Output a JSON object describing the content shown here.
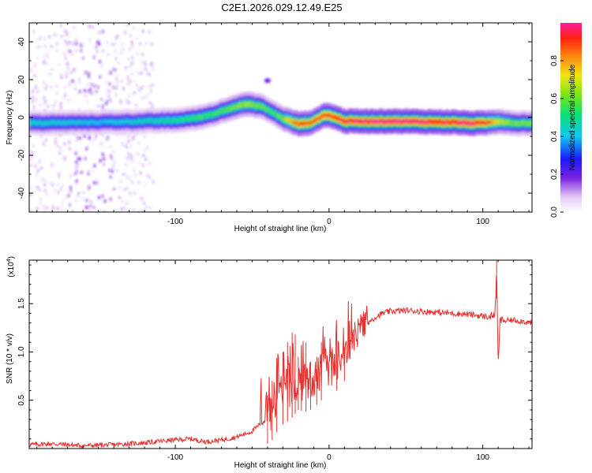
{
  "title": "C2E1.2026.029.12.49.E25",
  "chart_data": [
    {
      "type": "heatmap",
      "name": "spectrogram",
      "xlabel": "Height of straight line (km)",
      "ylabel": "Frequency (Hz)",
      "xlim": [
        -195,
        132
      ],
      "ylim": [
        -50,
        50
      ],
      "x_ticks": [
        -100,
        0,
        100
      ],
      "x_tick_labels": [
        "-100",
        "0",
        "100"
      ],
      "y_ticks": [
        -40,
        -20,
        0,
        20,
        40
      ],
      "y_tick_labels": [
        "-40",
        "-20",
        "0",
        "20",
        "40"
      ],
      "ridge_x": [
        -195,
        -150,
        -120,
        -100,
        -85,
        -75,
        -65,
        -55,
        -45,
        -38,
        -32,
        -26,
        -20,
        -15,
        -10,
        -5,
        0,
        10,
        40,
        80,
        90,
        100,
        110,
        120,
        132
      ],
      "ridge_f": [
        -3,
        -2.5,
        -2,
        -1.5,
        0,
        2,
        5,
        7,
        6,
        3,
        0,
        -2,
        -3.5,
        -3,
        -2,
        1,
        1,
        -2,
        -2,
        -2.5,
        -3,
        -3,
        -2,
        -3,
        -3
      ],
      "ridge_amp": [
        0.45,
        0.4,
        0.45,
        0.5,
        0.55,
        0.55,
        0.6,
        0.65,
        0.6,
        0.55,
        0.6,
        0.75,
        0.9,
        0.85,
        0.85,
        0.9,
        0.9,
        0.95,
        0.98,
        0.95,
        0.98,
        0.9,
        0.7,
        0.6,
        0.6
      ]
    },
    {
      "type": "colorbar",
      "name": "amplitude-colorbar",
      "label": "Normalized spectral amplitude",
      "range": [
        0,
        1
      ],
      "ticks": [
        0.0,
        0.2,
        0.4,
        0.6,
        0.8
      ],
      "tick_labels": [
        "0.0",
        "0.2",
        "0.4",
        "0.6",
        "0.8"
      ]
    },
    {
      "type": "line",
      "name": "snr-plot",
      "xlabel": "Height of straight line (km)",
      "ylabel": "SNR (10 * v/v)",
      "scale_label": "(x10",
      "scale_exp": "4",
      "xlim": [
        -195,
        132
      ],
      "ylim": [
        0,
        1.95
      ],
      "x_ticks": [
        -100,
        0,
        100
      ],
      "x_tick_labels": [
        "-100",
        "0",
        "100"
      ],
      "y_ticks": [
        0.5,
        1.0,
        1.5
      ],
      "y_tick_labels": [
        "0.5",
        "1.0",
        "1.5"
      ],
      "series": [
        {
          "name": "SNR",
          "color": "#e8302e",
          "x": [
            -195,
            -180,
            -160,
            -140,
            -120,
            -100,
            -90,
            -80,
            -70,
            -60,
            -50,
            -45,
            -40,
            -35,
            -30,
            -25,
            -20,
            -15,
            -10,
            -5,
            0,
            5,
            10,
            15,
            20,
            25,
            30,
            35,
            40,
            50,
            60,
            70,
            80,
            90,
            100,
            105,
            108,
            109,
            110,
            111,
            112,
            115,
            120,
            125,
            132
          ],
          "y": [
            0.04,
            0.05,
            0.03,
            0.04,
            0.06,
            0.09,
            0.1,
            0.07,
            0.09,
            0.12,
            0.18,
            0.25,
            0.3,
            0.45,
            0.55,
            0.6,
            0.7,
            0.68,
            0.72,
            0.8,
            0.82,
            0.9,
            1.0,
            1.1,
            1.2,
            1.3,
            1.36,
            1.4,
            1.42,
            1.43,
            1.42,
            1.41,
            1.4,
            1.39,
            1.37,
            1.36,
            1.4,
            1.85,
            0.8,
            1.3,
            1.33,
            1.32,
            1.33,
            1.32,
            1.3
          ],
          "spikes_x": [
            -40,
            -37,
            -34,
            -30,
            -27,
            -24,
            -22,
            -20,
            -18,
            -15,
            -12,
            -8,
            -5,
            5,
            10,
            109
          ],
          "spikes_y": [
            0.55,
            0.7,
            0.85,
            1.0,
            1.1,
            1.2,
            1.18,
            0.95,
            1.05,
            1.1,
            0.9,
            0.95,
            1.1,
            1.0,
            1.05,
            1.95
          ]
        }
      ]
    }
  ]
}
